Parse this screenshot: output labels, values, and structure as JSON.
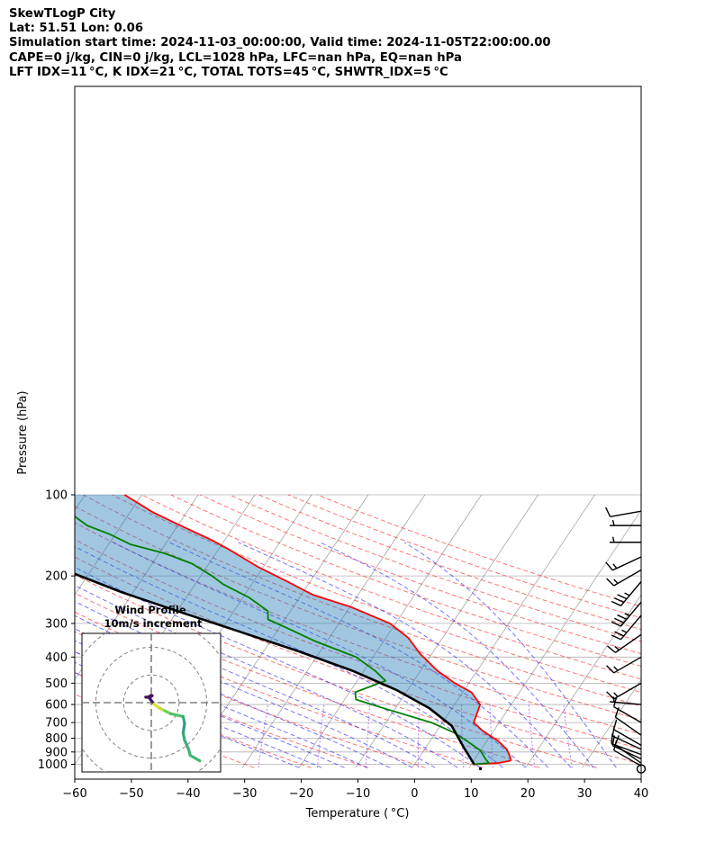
{
  "title_lines": [
    "SkewTLogP City",
    "Lat: 51.51   Lon: 0.06",
    "Simulation start time: 2024-11-03_00:00:00, Valid time: 2024-11-05T22:00:00.00",
    "CAPE=0 j/kg, CIN=0 j/kg, LCL=1028 hPa, LFC=nan hPa, EQ=nan hPa",
    "LFT IDX=11 °C, K IDX=21 °C, TOTAL TOTS=45 °C, SHWTR_IDX=5 °C"
  ],
  "axes": {
    "xlabel": "Temperature ( °C)",
    "ylabel": "Pressure (hPa)",
    "xticks": [
      "−60",
      "−50",
      "−40",
      "−30",
      "−20",
      "−10",
      "0",
      "10",
      "20",
      "30",
      "40"
    ],
    "yticks": [
      "100",
      "200",
      "300",
      "400",
      "500",
      "600",
      "700",
      "800",
      "900",
      "1000"
    ]
  },
  "inset": {
    "title_line1": "Wind Profile",
    "title_line2": "10m/s increment"
  },
  "colors": {
    "temperature": "#ff0000",
    "dewpoint": "#008000",
    "parcel": "#000000",
    "cape_fill": "#1f77b4",
    "dry_adiabat": "#ff0000",
    "moist_adiabat": "#0000ff",
    "mixing_ratio": "#8a2be2",
    "isotherm": "#808080",
    "pressure_grid": "#b0b0b0"
  },
  "chart_data": {
    "type": "line",
    "title": "SkewTLogP City",
    "xlabel": "Temperature ( °C)",
    "ylabel": "Pressure (hPa)",
    "xlim": [
      -60,
      40
    ],
    "ylim": [
      1050,
      100
    ],
    "y_scale": "log",
    "skew": true,
    "grid": true,
    "series": [
      {
        "key": "temperature",
        "points": [
          [
            10.5,
            1000
          ],
          [
            14.5,
            990
          ],
          [
            16.5,
            970
          ],
          [
            16,
            940
          ],
          [
            14.5,
            880
          ],
          [
            12,
            820
          ],
          [
            8,
            750
          ],
          [
            5.5,
            700
          ],
          [
            4.5,
            600
          ],
          [
            1.5,
            540
          ],
          [
            -2.5,
            500
          ],
          [
            -7,
            450
          ],
          [
            -12,
            390
          ],
          [
            -16,
            340
          ],
          [
            -21,
            300
          ],
          [
            -30,
            260
          ],
          [
            -38,
            235
          ],
          [
            -44,
            210
          ],
          [
            -51,
            185
          ],
          [
            -58,
            160
          ],
          [
            -62,
            148
          ],
          [
            -70,
            129
          ],
          [
            -76,
            116
          ],
          [
            -83,
            100
          ]
        ]
      },
      {
        "key": "dewpoint",
        "points": [
          [
            10.5,
            1000
          ],
          [
            13,
            990
          ],
          [
            12,
            960
          ],
          [
            10,
            890
          ],
          [
            6.5,
            820
          ],
          [
            3,
            760
          ],
          [
            -2,
            700
          ],
          [
            -12,
            620
          ],
          [
            -18,
            575
          ],
          [
            -19,
            540
          ],
          [
            -15,
            490
          ],
          [
            -18,
            450
          ],
          [
            -23,
            400
          ],
          [
            -32,
            350
          ],
          [
            -39,
            310
          ],
          [
            -43,
            290
          ],
          [
            -44,
            270
          ],
          [
            -49,
            240
          ],
          [
            -55,
            215
          ],
          [
            -58,
            200
          ],
          [
            -63,
            180
          ],
          [
            -69,
            165
          ],
          [
            -76,
            153
          ],
          [
            -81,
            140
          ],
          [
            -86,
            130
          ],
          [
            -97,
            100
          ]
        ]
      },
      {
        "key": "parcel",
        "points": [
          [
            10.5,
            1000
          ],
          [
            6.5,
            860
          ],
          [
            2,
            720
          ],
          [
            -4,
            620
          ],
          [
            -12,
            530
          ],
          [
            -22,
            450
          ],
          [
            -34,
            380
          ],
          [
            -47,
            320
          ],
          [
            -60,
            270
          ],
          [
            -72,
            230
          ],
          [
            -83,
            195
          ],
          [
            -93,
            170
          ],
          [
            -101,
            150
          ],
          [
            -108,
            135
          ],
          [
            -115,
            122
          ],
          [
            -121,
            112
          ],
          [
            -125,
            100
          ]
        ]
      }
    ],
    "wind_barbs": [
      {
        "p": 1040,
        "speed_kt": 0,
        "dir_deg": 0
      },
      {
        "p": 1015,
        "speed_kt": 10,
        "dir_deg": 120
      },
      {
        "p": 990,
        "speed_kt": 10,
        "dir_deg": 125
      },
      {
        "p": 955,
        "speed_kt": 10,
        "dir_deg": 115
      },
      {
        "p": 920,
        "speed_kt": 10,
        "dir_deg": 110
      },
      {
        "p": 880,
        "speed_kt": 10,
        "dir_deg": 115
      },
      {
        "p": 850,
        "speed_kt": 10,
        "dir_deg": 120
      },
      {
        "p": 780,
        "speed_kt": 10,
        "dir_deg": 125
      },
      {
        "p": 700,
        "speed_kt": 10,
        "dir_deg": 120
      },
      {
        "p": 600,
        "speed_kt": 5,
        "dir_deg": 95
      },
      {
        "p": 500,
        "speed_kt": 15,
        "dir_deg": 60
      },
      {
        "p": 400,
        "speed_kt": 15,
        "dir_deg": 60
      },
      {
        "p": 330,
        "speed_kt": 15,
        "dir_deg": 55
      },
      {
        "p": 280,
        "speed_kt": 25,
        "dir_deg": 40
      },
      {
        "p": 250,
        "speed_kt": 35,
        "dir_deg": 40
      },
      {
        "p": 210,
        "speed_kt": 35,
        "dir_deg": 40
      },
      {
        "p": 190,
        "speed_kt": 15,
        "dir_deg": 60
      },
      {
        "p": 170,
        "speed_kt": 15,
        "dir_deg": 65
      },
      {
        "p": 150,
        "speed_kt": 5,
        "dir_deg": 90
      },
      {
        "p": 130,
        "speed_kt": 5,
        "dir_deg": 90
      },
      {
        "p": 115,
        "speed_kt": 10,
        "dir_deg": 80
      }
    ],
    "hodograph": {
      "increment_ms": 10,
      "rings": [
        10,
        20,
        30
      ],
      "range": [
        -25,
        25
      ],
      "points": [
        [
          -2,
          2
        ],
        [
          -0.5,
          2
        ],
        [
          0.3,
          2.5
        ],
        [
          -0.3,
          2.5
        ],
        [
          -1,
          2
        ],
        [
          1,
          -0.5
        ],
        [
          3,
          -2
        ],
        [
          5,
          -3
        ],
        [
          7,
          -4
        ],
        [
          11.5,
          -5
        ],
        [
          12,
          -7.5
        ],
        [
          11.5,
          -11
        ],
        [
          12,
          -13.5
        ],
        [
          13.5,
          -17
        ],
        [
          14,
          -19
        ],
        [
          17.5,
          -21
        ]
      ]
    }
  }
}
